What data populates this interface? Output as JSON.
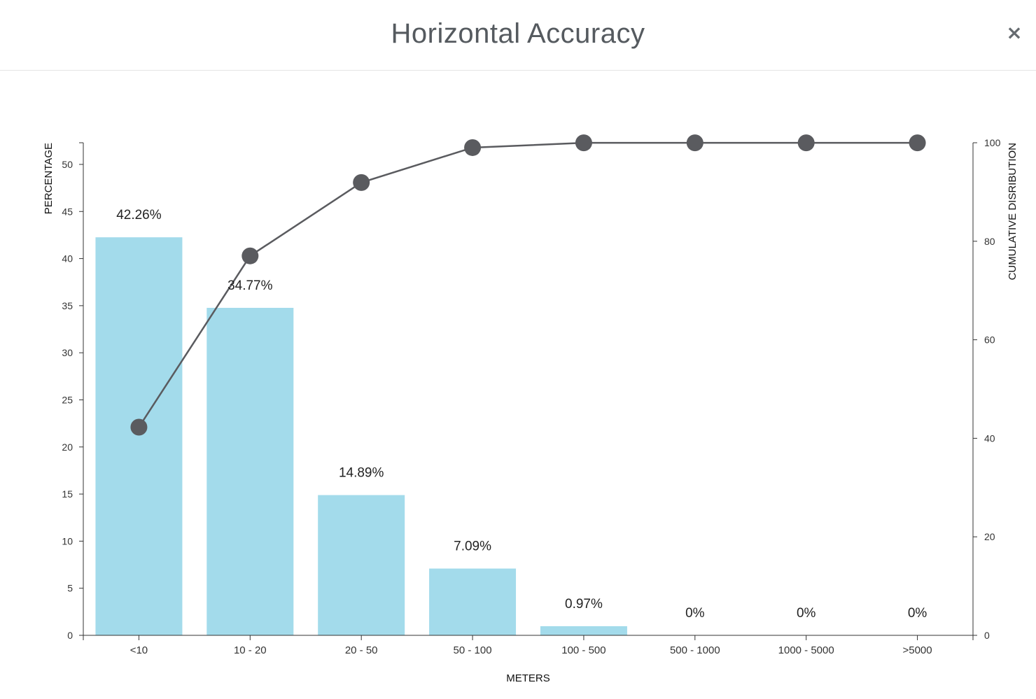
{
  "modal": {
    "title": "Horizontal Accuracy",
    "close_label": "×"
  },
  "colors": {
    "bar": "#a3dbeb",
    "line": "#5a5b5f",
    "axis": "#333333",
    "text": "#333333"
  },
  "chart_data": {
    "type": "bar",
    "xlabel": "METERS",
    "ylabel": "PERCENTAGE",
    "y2label": "CUMULATIVE DISRIBUTION",
    "categories": [
      "<10",
      "10 - 20",
      "20 - 50",
      "50 - 100",
      "100 - 500",
      "500 - 1000",
      "1000 - 5000",
      ">5000"
    ],
    "series": [
      {
        "type": "bar",
        "values": [
          42.26,
          34.77,
          14.89,
          7.09,
          0.97,
          0,
          0,
          0
        ],
        "data_labels": [
          "42.26%",
          "34.77%",
          "14.89%",
          "7.09%",
          "0.97%",
          "0%",
          "0%",
          "0%"
        ]
      },
      {
        "type": "line",
        "axis": "right",
        "values": [
          42.26,
          77.03,
          91.92,
          99.01,
          99.98,
          99.98,
          99.98,
          99.98
        ]
      }
    ],
    "ylim": [
      0,
      52.3
    ],
    "y_ticks": [
      0,
      5,
      10,
      15,
      20,
      25,
      30,
      35,
      40,
      45,
      50
    ],
    "y2lim": [
      0,
      100
    ],
    "y2_ticks": [
      0,
      20,
      40,
      60,
      80,
      100
    ],
    "grid": false,
    "legend": "none"
  }
}
